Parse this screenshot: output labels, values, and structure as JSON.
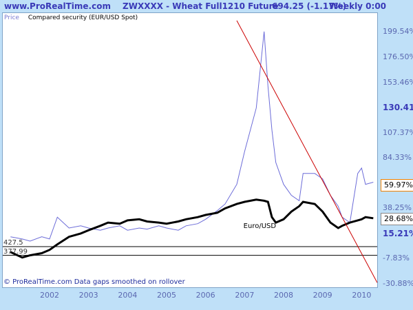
{
  "header": {
    "site": "www.ProRealTime.com",
    "instrument": "ZWXXXX - Wheat Full1210 Future",
    "price": "694.25 (-1.17%)",
    "period": "Weekly 0:00"
  },
  "legend": {
    "price_label": "Price",
    "compared_label": "Compared security (EUR/USD Spot)"
  },
  "footer": {
    "note": "© ProRealTime.com  Data gaps smoothed on rollover"
  },
  "chart_data": {
    "type": "line",
    "x": [
      2001.5,
      2001.8,
      2002.0,
      2002.3,
      2002.5,
      2002.7,
      2003.0,
      2003.3,
      2003.5,
      2003.8,
      2004.0,
      2004.3,
      2004.5,
      2004.8,
      2005.0,
      2005.3,
      2005.5,
      2005.8,
      2006.0,
      2006.3,
      2006.5,
      2006.8,
      2007.0,
      2007.3,
      2007.5,
      2007.8,
      2008.0,
      2008.1,
      2008.2,
      2008.3,
      2008.5,
      2008.7,
      2008.9,
      2009.0,
      2009.3,
      2009.5,
      2009.7,
      2009.9,
      2010.0,
      2010.2,
      2010.4,
      2010.5,
      2010.6,
      2010.8
    ],
    "series": [
      {
        "name": "",
        "values": [
          12,
          10,
          8,
          12,
          10,
          30,
          20,
          22,
          20,
          18,
          20,
          22,
          18,
          20,
          19,
          22,
          20,
          18,
          22,
          24,
          28,
          36,
          42,
          60,
          90,
          130,
          200,
          150,
          110,
          80,
          60,
          50,
          45,
          70,
          70,
          65,
          50,
          40,
          30,
          25,
          70,
          75,
          60,
          62
        ],
        "color": "#6b6bd8"
      },
      {
        "name": "Euro/USD",
        "values": [
          -2,
          -7,
          -5,
          -3,
          0,
          5,
          12,
          15,
          18,
          22,
          25,
          24,
          27,
          28,
          26,
          25,
          24,
          26,
          28,
          30,
          32,
          34,
          38,
          42,
          44,
          46,
          45,
          44,
          30,
          25,
          28,
          35,
          40,
          44,
          42,
          35,
          25,
          20,
          22,
          25,
          27,
          28,
          30,
          29
        ],
        "color": "#000000"
      }
    ],
    "xlabel": "",
    "ylabel": "",
    "ylim": [
      -33,
      215
    ],
    "x_ticks": [
      "2002",
      "2003",
      "2004",
      "2005",
      "2006",
      "2007",
      "2008",
      "2009",
      "2010"
    ],
    "y_ticks": [
      "199.54%",
      "176.50%",
      "153.46%",
      "130.41%",
      "107.37%",
      "84.33%",
      "38.25%",
      "15.21%",
      "-7.83%",
      "-30.88%"
    ],
    "current_values": [
      "59.97%",
      "28.68%"
    ],
    "levels": [
      {
        "label": "427.5",
        "value": 3
      },
      {
        "label": "377.99",
        "value": -5
      }
    ],
    "trend_line": {
      "from": [
        2007.3,
        210
      ],
      "to": [
        2010.9,
        -30
      ],
      "color": "#cc0000"
    },
    "grid": false,
    "legend_position": "top-left"
  }
}
